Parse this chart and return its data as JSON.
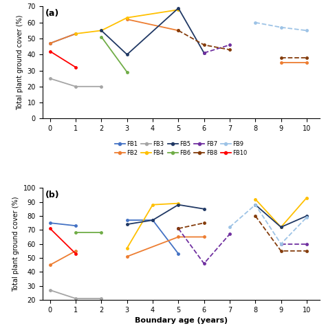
{
  "colors": {
    "FB1": "#4472C4",
    "FB2": "#ED7D31",
    "FB3": "#A5A5A5",
    "FB4": "#FFC000",
    "FB5": "#203864",
    "FB6": "#70AD47",
    "FB7": "#7030A0",
    "FB8": "#843C0C",
    "FB9": "#9DC3E6",
    "FB10": "#FF0000"
  },
  "panel_a": {
    "series": {
      "FB1": {
        "segments": [
          [
            [
              0,
              1
            ],
            [
              47,
              53
            ]
          ]
        ],
        "dash": false
      },
      "FB2": {
        "segments": [
          [
            [
              0,
              1
            ],
            [
              47,
              53
            ]
          ],
          [
            [
              3,
              5
            ],
            [
              62,
              55
            ]
          ],
          [
            [
              9,
              10
            ],
            [
              35,
              35
            ]
          ]
        ],
        "dash": false
      },
      "FB3": {
        "segments": [
          [
            [
              0,
              1,
              2
            ],
            [
              25,
              20,
              20
            ]
          ]
        ],
        "dash": false
      },
      "FB4": {
        "segments": [
          [
            [
              1,
              2,
              3,
              5
            ],
            [
              53,
              55,
              63,
              68
            ]
          ]
        ],
        "dash": false
      },
      "FB5": {
        "segments": [
          [
            [
              2,
              3,
              5,
              6
            ],
            [
              55,
              40,
              69,
              41
            ]
          ]
        ],
        "dash": false
      },
      "FB6": {
        "segments": [
          [
            [
              2,
              3
            ],
            [
              51,
              29
            ]
          ]
        ],
        "dash": false
      },
      "FB7": {
        "segments": [
          [
            [
              6,
              7
            ],
            [
              41,
              46
            ]
          ]
        ],
        "dash": true
      },
      "FB8": {
        "segments": [
          [
            [
              5,
              6,
              7
            ],
            [
              55,
              46,
              43
            ]
          ],
          [
            [
              9,
              10
            ],
            [
              38,
              38
            ]
          ]
        ],
        "dash": true
      },
      "FB9": {
        "segments": [
          [
            [
              8,
              9,
              10
            ],
            [
              60,
              57,
              55
            ]
          ]
        ],
        "dash": true
      },
      "FB10": {
        "segments": [
          [
            [
              0,
              1
            ],
            [
              42,
              32
            ]
          ]
        ],
        "dash": false
      }
    },
    "label": "(a)",
    "ylim": [
      0,
      70
    ],
    "yticks": [
      0,
      10,
      20,
      30,
      40,
      50,
      60,
      70
    ],
    "show_xlabel": false
  },
  "panel_b": {
    "series": {
      "FB1": {
        "segments": [
          [
            [
              0,
              1
            ],
            [
              75,
              73
            ]
          ],
          [
            [
              3,
              4,
              5
            ],
            [
              77,
              77,
              53
            ]
          ]
        ],
        "dash": false
      },
      "FB2": {
        "segments": [
          [
            [
              0,
              1
            ],
            [
              45,
              55
            ]
          ],
          [
            [
              3,
              5,
              6
            ],
            [
              51,
              65,
              65
            ]
          ]
        ],
        "dash": false
      },
      "FB3": {
        "segments": [
          [
            [
              0,
              1,
              2
            ],
            [
              27,
              21,
              21
            ]
          ]
        ],
        "dash": false
      },
      "FB4": {
        "segments": [
          [
            [
              3,
              4,
              5
            ],
            [
              57,
              88,
              89
            ]
          ],
          [
            [
              8,
              9,
              10
            ],
            [
              92,
              72,
              93
            ]
          ]
        ],
        "dash": false
      },
      "FB5": {
        "segments": [
          [
            [
              3,
              4,
              5,
              6
            ],
            [
              74,
              77,
              88,
              85
            ]
          ],
          [
            [
              8,
              9,
              10
            ],
            [
              88,
              72,
              80
            ]
          ]
        ],
        "dash": false
      },
      "FB6": {
        "segments": [
          [
            [
              1,
              2
            ],
            [
              68,
              68
            ]
          ]
        ],
        "dash": false
      },
      "FB7": {
        "segments": [
          [
            [
              5,
              6,
              7
            ],
            [
              71,
              46,
              67
            ]
          ],
          [
            [
              9,
              10
            ],
            [
              60,
              60
            ]
          ]
        ],
        "dash": true
      },
      "FB8": {
        "segments": [
          [
            [
              5,
              6
            ],
            [
              71,
              75
            ]
          ],
          [
            [
              8,
              9,
              10
            ],
            [
              80,
              55,
              55
            ]
          ]
        ],
        "dash": true
      },
      "FB9": {
        "segments": [
          [
            [
              7,
              8,
              9,
              10
            ],
            [
              72,
              88,
              60,
              79
            ]
          ]
        ],
        "dash": true
      },
      "FB10": {
        "segments": [
          [
            [
              0,
              1
            ],
            [
              71,
              53
            ]
          ]
        ],
        "dash": false
      }
    },
    "label": "(b)",
    "ylim": [
      20,
      100
    ],
    "yticks": [
      20,
      30,
      40,
      50,
      60,
      70,
      80,
      90,
      100
    ],
    "show_xlabel": true
  },
  "legend_order": [
    "FB1",
    "FB2",
    "FB3",
    "FB4",
    "FB5",
    "FB6",
    "FB7",
    "FB8",
    "FB9",
    "FB10"
  ],
  "xlabel": "Boundary age (years)",
  "xticks": [
    0,
    1,
    2,
    3,
    4,
    5,
    6,
    7,
    8,
    9,
    10
  ],
  "xlim": [
    -0.3,
    10.5
  ]
}
